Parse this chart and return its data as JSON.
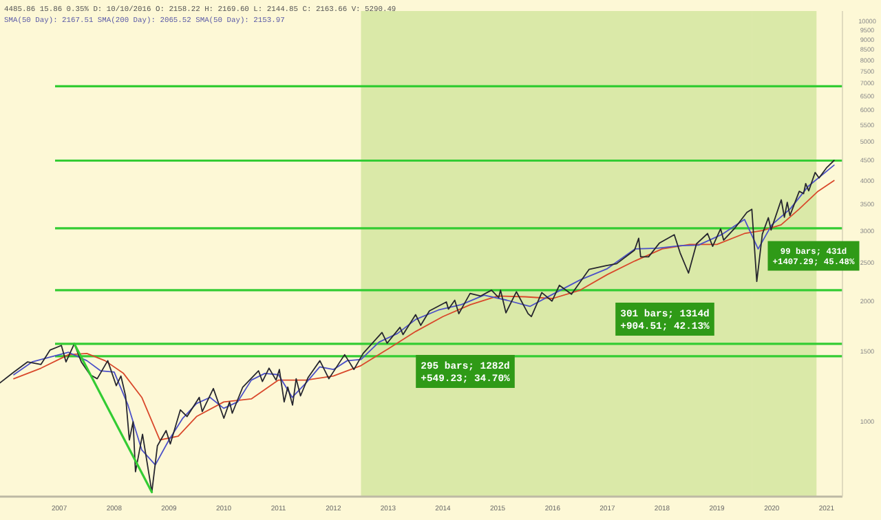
{
  "chart_data": {
    "type": "line",
    "title": "4485.86 15.86 0.35% D: 10/10/2016 O: 2158.22 H: 2169.60 L: 2144.85 C: 2163.66 V: 5290.49",
    "subtitle": "SMA(50 Day): 2167.51 SMA(200 Day): 2065.52 SMA(50 Day): 2153.97",
    "log": true,
    "xlim": [
      "2006-06-01",
      "2021-10-15"
    ],
    "ylim": [
      650,
      10600
    ],
    "xticks": [
      {
        "value": "2007-07-01",
        "label": "2007"
      },
      {
        "value": "2008-07-01",
        "label": "2008"
      },
      {
        "value": "2009-07-01",
        "label": "2009"
      },
      {
        "value": "2010-07-01",
        "label": "2010"
      },
      {
        "value": "2011-07-01",
        "label": "2011"
      },
      {
        "value": "2012-07-01",
        "label": "2012"
      },
      {
        "value": "2013-07-01",
        "label": "2013"
      },
      {
        "value": "2014-07-01",
        "label": "2014"
      },
      {
        "value": "2015-07-01",
        "label": "2015"
      },
      {
        "value": "2016-07-01",
        "label": "2016"
      },
      {
        "value": "2017-07-01",
        "label": "2017"
      },
      {
        "value": "2018-07-01",
        "label": "2018"
      },
      {
        "value": "2019-07-01",
        "label": "2019"
      },
      {
        "value": "2020-07-01",
        "label": "2020"
      },
      {
        "value": "2021-07-01",
        "label": "2021"
      }
    ],
    "yticks": [
      1000,
      1500,
      2000,
      2500,
      3000,
      3500,
      4000,
      4500,
      5000,
      5500,
      6000,
      6500,
      7000,
      7500,
      8000,
      8500,
      9000,
      9500,
      10000
    ],
    "series": [
      {
        "color": "#d9482b",
        "x": [
          "2006-09-01",
          "2007-03-01",
          "2007-09-01",
          "2008-01-01",
          "2008-05-01",
          "2008-09-01",
          "2009-01-01",
          "2009-05-01",
          "2009-09-01",
          "2010-01-01",
          "2010-07-01",
          "2011-01-01",
          "2011-07-01",
          "2012-01-01",
          "2012-07-01",
          "2013-01-01",
          "2013-07-01",
          "2014-01-01",
          "2014-07-01",
          "2015-01-01",
          "2015-07-01",
          "2016-01-01",
          "2016-07-01",
          "2017-01-01",
          "2017-07-01",
          "2018-01-01",
          "2018-07-01",
          "2019-01-01",
          "2019-07-01",
          "2020-01-01",
          "2020-05-01",
          "2020-09-01",
          "2021-01-01",
          "2021-05-01",
          "2021-08-20"
        ],
        "values": [
          1280,
          1360,
          1470,
          1480,
          1420,
          1320,
          1150,
          900,
          920,
          1030,
          1120,
          1140,
          1270,
          1270,
          1300,
          1380,
          1520,
          1680,
          1830,
          1960,
          2060,
          2050,
          2030,
          2130,
          2330,
          2520,
          2700,
          2770,
          2770,
          2950,
          3000,
          3100,
          3400,
          3750,
          4000
        ]
      },
      {
        "color": "#4b50c8",
        "x": [
          "2006-09-01",
          "2007-01-01",
          "2007-05-01",
          "2007-09-01",
          "2008-01-01",
          "2008-04-01",
          "2008-07-01",
          "2008-10-01",
          "2009-01-01",
          "2009-04-01",
          "2009-07-01",
          "2009-10-01",
          "2010-01-01",
          "2010-04-01",
          "2010-07-01",
          "2010-10-01",
          "2011-01-01",
          "2011-04-01",
          "2011-07-01",
          "2011-10-01",
          "2012-01-01",
          "2012-04-01",
          "2012-07-01",
          "2012-10-01",
          "2013-01-01",
          "2013-05-01",
          "2013-09-01",
          "2014-01-01",
          "2014-06-01",
          "2014-11-01",
          "2015-04-01",
          "2015-09-01",
          "2016-02-01",
          "2016-07-01",
          "2017-01-01",
          "2017-07-01",
          "2018-01-01",
          "2018-06-01",
          "2018-11-01",
          "2019-03-01",
          "2019-08-01",
          "2020-01-01",
          "2020-04-01",
          "2020-07-01",
          "2020-11-01",
          "2021-03-01",
          "2021-08-20"
        ],
        "values": [
          1310,
          1410,
          1450,
          1490,
          1420,
          1340,
          1330,
          1100,
          850,
          780,
          900,
          1020,
          1110,
          1150,
          1080,
          1120,
          1270,
          1320,
          1310,
          1150,
          1250,
          1370,
          1350,
          1420,
          1430,
          1580,
          1660,
          1800,
          1900,
          1960,
          2070,
          2010,
          1940,
          2080,
          2260,
          2410,
          2700,
          2710,
          2750,
          2760,
          2930,
          3200,
          2700,
          3100,
          3400,
          3870,
          4370
        ]
      },
      {
        "color": "#26262e",
        "x": [
          "2006-06-01",
          "2006-09-01",
          "2006-12-01",
          "2007-03-01",
          "2007-05-01",
          "2007-07-15",
          "2007-08-15",
          "2007-10-09",
          "2007-11-25",
          "2008-01-22",
          "2008-03-10",
          "2008-05-19",
          "2008-07-15",
          "2008-08-15",
          "2008-09-15",
          "2008-10-10",
          "2008-11-04",
          "2008-11-20",
          "2009-01-06",
          "2009-03-09",
          "2009-04-15",
          "2009-06-12",
          "2009-07-10",
          "2009-09-15",
          "2009-10-30",
          "2010-01-19",
          "2010-02-08",
          "2010-04-23",
          "2010-07-02",
          "2010-08-09",
          "2010-08-27",
          "2010-11-05",
          "2011-02-18",
          "2011-03-16",
          "2011-04-29",
          "2011-06-15",
          "2011-07-07",
          "2011-08-08",
          "2011-09-01",
          "2011-10-03",
          "2011-10-27",
          "2011-11-25",
          "2012-01-15",
          "2012-04-02",
          "2012-06-01",
          "2012-09-14",
          "2012-11-15",
          "2013-01-15",
          "2013-05-21",
          "2013-06-24",
          "2013-09-18",
          "2013-10-08",
          "2013-12-31",
          "2014-02-03",
          "2014-04-02",
          "2014-07-24",
          "2014-08-07",
          "2014-09-18",
          "2014-10-15",
          "2014-12-29",
          "2015-03-10",
          "2015-05-21",
          "2015-07-08",
          "2015-07-20",
          "2015-08-25",
          "2015-11-03",
          "2016-01-20",
          "2016-02-11",
          "2016-04-20",
          "2016-06-27",
          "2016-08-15",
          "2016-11-04",
          "2017-03-01",
          "2017-06-19",
          "2017-09-01",
          "2017-12-29",
          "2018-01-26",
          "2018-02-08",
          "2018-04-02",
          "2018-06-12",
          "2018-09-20",
          "2018-10-29",
          "2018-12-24",
          "2019-02-15",
          "2019-04-30",
          "2019-06-03",
          "2019-07-26",
          "2019-08-15",
          "2019-10-31",
          "2020-01-17",
          "2020-02-19",
          "2020-03-23",
          "2020-04-29",
          "2020-06-08",
          "2020-06-26",
          "2020-09-02",
          "2020-09-23",
          "2020-10-12",
          "2020-10-30",
          "2020-12-31",
          "2021-01-29",
          "2021-02-12",
          "2021-03-04",
          "2021-04-16",
          "2021-05-12",
          "2021-06-30",
          "2021-07-19",
          "2021-08-20"
        ],
        "values": [
          1250,
          1330,
          1410,
          1390,
          1510,
          1550,
          1410,
          1565,
          1410,
          1310,
          1280,
          1420,
          1230,
          1300,
          1160,
          900,
          1000,
          750,
          930,
          667,
          870,
          950,
          880,
          1070,
          1030,
          1150,
          1060,
          1210,
          1020,
          1120,
          1050,
          1220,
          1340,
          1260,
          1360,
          1270,
          1350,
          1120,
          1220,
          1100,
          1280,
          1160,
          1290,
          1420,
          1280,
          1470,
          1350,
          1480,
          1670,
          1570,
          1720,
          1650,
          1850,
          1740,
          1890,
          1990,
          1910,
          2010,
          1860,
          2090,
          2060,
          2130,
          2040,
          2130,
          1870,
          2110,
          1860,
          1830,
          2100,
          2000,
          2190,
          2080,
          2400,
          2450,
          2480,
          2680,
          2870,
          2580,
          2580,
          2790,
          2930,
          2640,
          2350,
          2780,
          2950,
          2740,
          3030,
          2840,
          3050,
          3330,
          3390,
          2240,
          2940,
          3230,
          3010,
          3580,
          3240,
          3530,
          3270,
          3760,
          3710,
          3930,
          3770,
          4190,
          4060,
          4300,
          4370,
          4490
        ]
      },
      {
        "color": "#33cc33",
        "x": [
          "2007-10-09",
          "2009-03-09"
        ],
        "values": [
          1565,
          667
        ]
      }
    ],
    "ref_lines": [
      {
        "axis": "y",
        "value": 6880,
        "color": "#33cc33"
      },
      {
        "axis": "y",
        "value": 4485,
        "color": "#33cc33"
      },
      {
        "axis": "y",
        "value": 3040,
        "color": "#33cc33"
      },
      {
        "axis": "y",
        "value": 2130,
        "color": "#33cc33"
      },
      {
        "axis": "y",
        "value": 1565,
        "color": "#33cc33"
      },
      {
        "axis": "y",
        "value": 1457,
        "color": "#33cc33"
      }
    ],
    "bands": [
      {
        "axis": "x",
        "from": "2013-01-01",
        "to": "2016-07-06",
        "color": "#8cc63f"
      },
      {
        "axis": "x",
        "from": "2016-07-06",
        "to": "2020-02-19",
        "color": "#8cc63f"
      },
      {
        "axis": "x",
        "from": "2020-02-19",
        "to": "2021-04-25",
        "color": "#8cc63f"
      }
    ],
    "annotations": [
      "295 bars; 1282d\n+549.23; 34.70%",
      "301 bars; 1314d\n+904.51; 42.13%",
      "99 bars; 431d\n+1407.29; 45.48%"
    ]
  }
}
